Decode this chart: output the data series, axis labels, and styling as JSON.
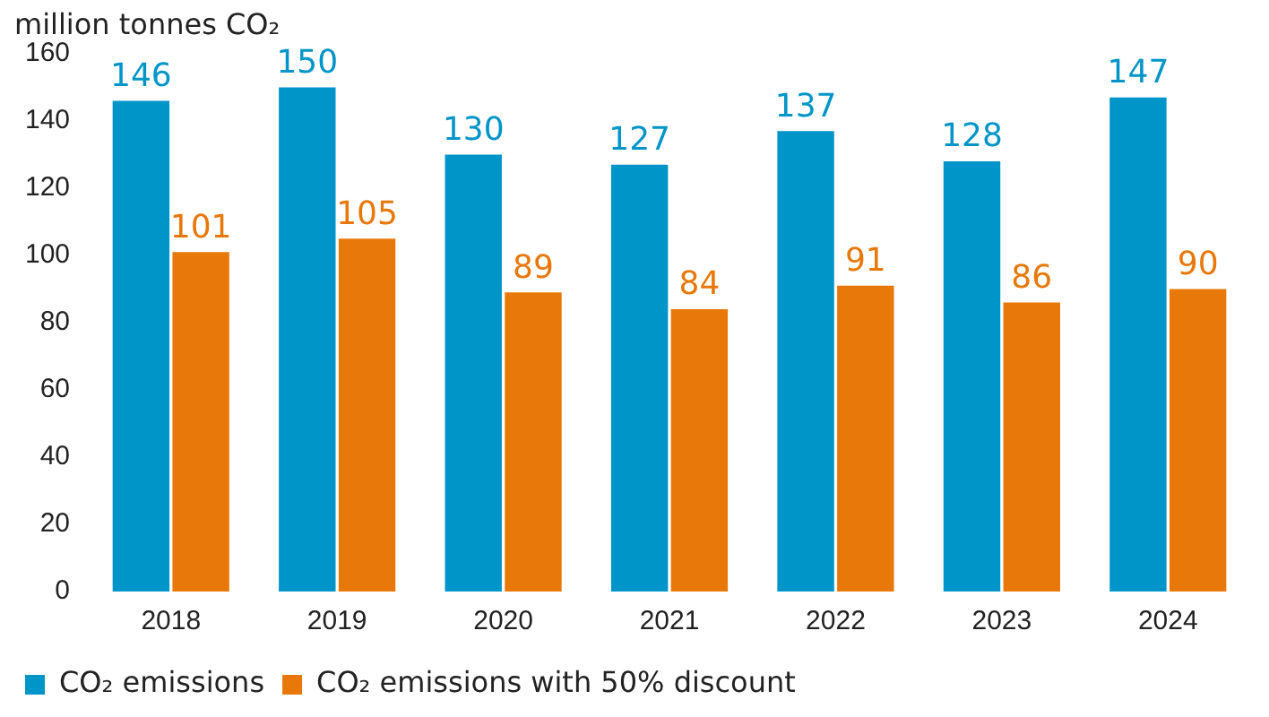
{
  "chart_data": {
    "type": "bar",
    "ylabel": "million tonnes CO₂",
    "categories": [
      "2018",
      "2019",
      "2020",
      "2021",
      "2022",
      "2023",
      "2024"
    ],
    "series": [
      {
        "name": "CO₂ emissions",
        "color": "#0095c8",
        "values": [
          146,
          150,
          130,
          127,
          137,
          128,
          147
        ]
      },
      {
        "name": "CO₂ emissions with 50% discount",
        "color": "#e8780a",
        "values": [
          101,
          105,
          89,
          84,
          91,
          86,
          90
        ]
      }
    ],
    "ylim": [
      0,
      160
    ],
    "yticks": [
      0,
      20,
      40,
      60,
      80,
      100,
      120,
      140,
      160
    ],
    "grid": false,
    "legend": "bottom left",
    "data_labels": true
  }
}
